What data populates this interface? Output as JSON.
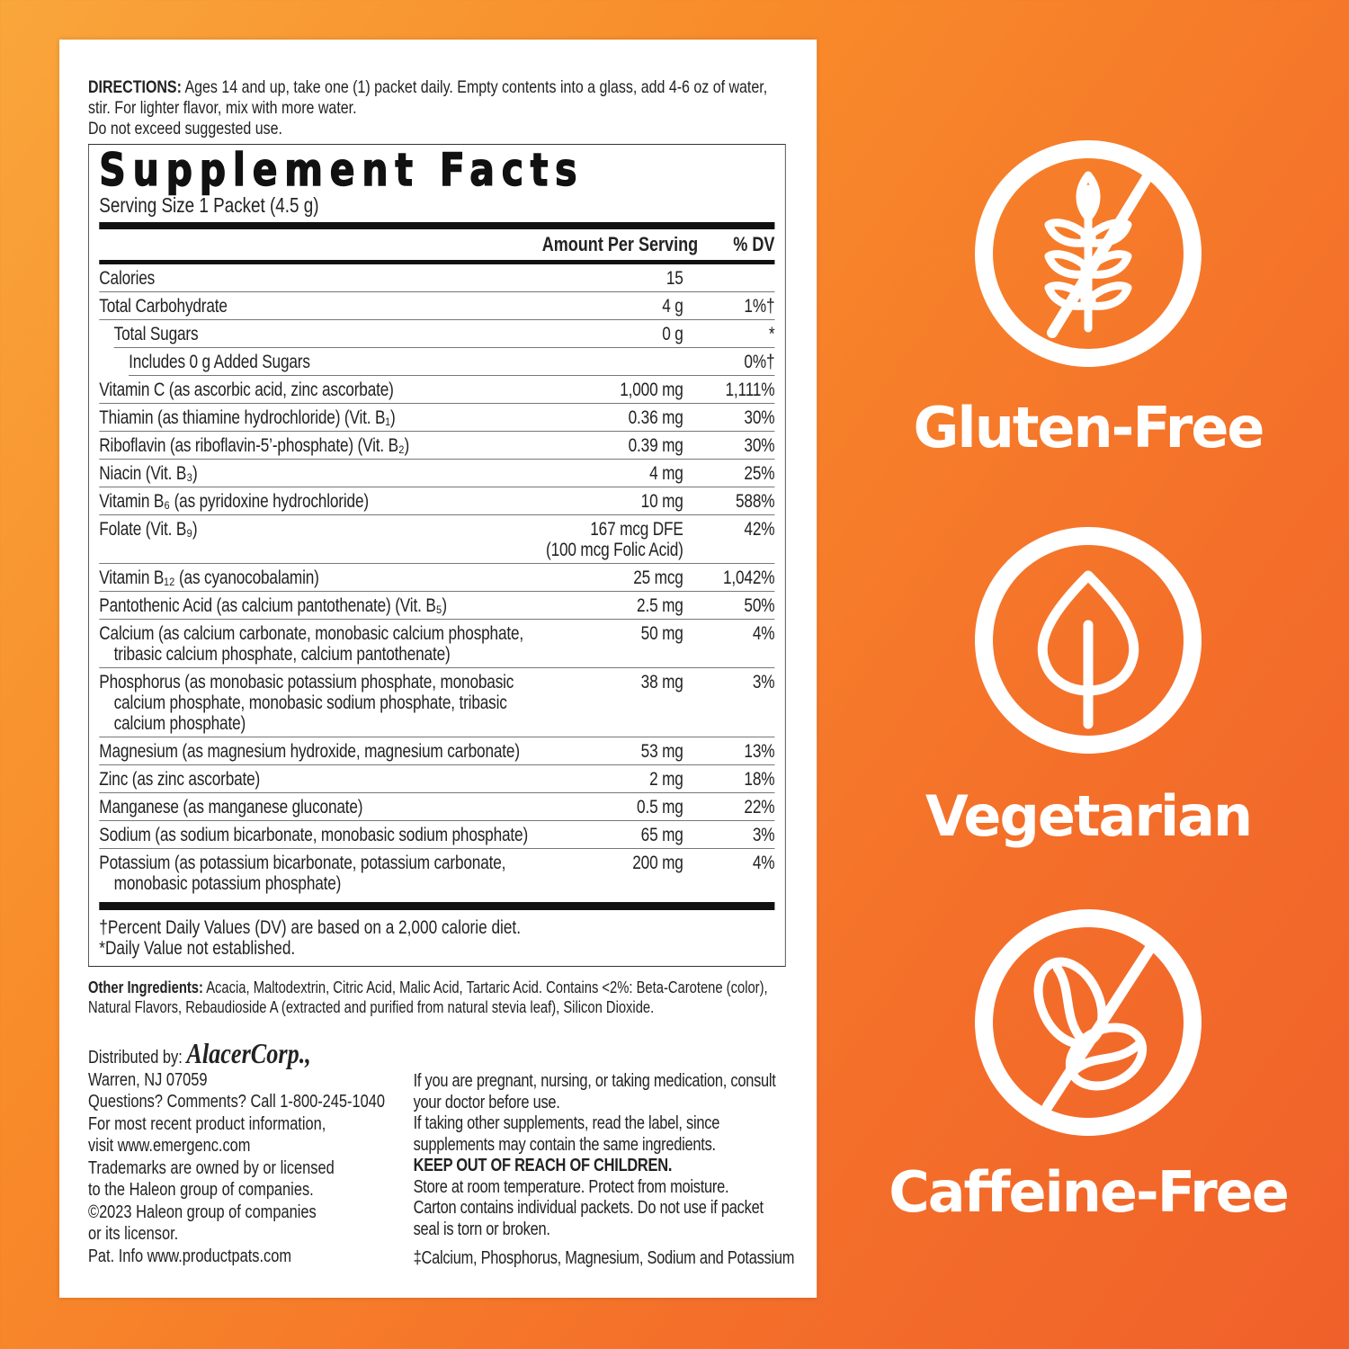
{
  "directions": {
    "label": "DIRECTIONS:",
    "text": " Ages 14 and up, take one (1) packet daily. Empty contents into a glass, add 4-6 oz of water, stir. For lighter flavor, mix with more water.",
    "line3": "Do not exceed suggested use."
  },
  "facts": {
    "title": "Supplement Facts",
    "serving": "Serving Size 1 Packet (4.5 g)",
    "header_amount": "Amount Per Serving",
    "header_dv": "% DV",
    "rows": [
      {
        "name": "Calories",
        "amount": "15",
        "dv": ""
      },
      {
        "name": "Total Carbohydrate",
        "amount": "4 g",
        "dv": "1%†"
      },
      {
        "name": "Total Sugars",
        "amount": "0 g",
        "dv": "*"
      },
      {
        "name": "Includes 0 g Added Sugars",
        "amount": "",
        "dv": "0%†"
      },
      {
        "name": "Vitamin C (as ascorbic acid, zinc ascorbate)",
        "amount": "1,000 mg",
        "dv": "1,111%"
      },
      {
        "name": "Thiamin (as thiamine hydrochloride) (Vit. B₁)",
        "amount": "0.36 mg",
        "dv": "30%"
      },
      {
        "name": "Riboflavin (as riboflavin-5’-phosphate) (Vit. B₂)",
        "amount": "0.39 mg",
        "dv": "30%"
      },
      {
        "name": "Niacin (Vit. B₃)",
        "amount": "4 mg",
        "dv": "25%"
      },
      {
        "name": "Vitamin B₆ (as pyridoxine hydrochloride)",
        "amount": "10 mg",
        "dv": "588%"
      },
      {
        "name": "Folate (Vit. B₉)",
        "amount": "167 mcg DFE",
        "amount2": "(100 mcg Folic Acid)",
        "dv": "42%"
      },
      {
        "name": "Vitamin B₁₂ (as cyanocobalamin)",
        "amount": "25 mcg",
        "dv": "1,042%"
      },
      {
        "name": "Pantothenic Acid (as calcium pantothenate) (Vit. B₅)",
        "amount": "2.5 mg",
        "dv": "50%"
      },
      {
        "name": "Calcium (as calcium carbonate, monobasic calcium phosphate,",
        "name2": "tribasic calcium phosphate, calcium pantothenate)",
        "amount": "50 mg",
        "dv": "4%"
      },
      {
        "name": "Phosphorus (as monobasic potassium phosphate, monobasic",
        "name2": "calcium phosphate, monobasic sodium phosphate, tribasic",
        "name3": "calcium phosphate)",
        "amount": "38 mg",
        "dv": "3%"
      },
      {
        "name": "Magnesium (as magnesium hydroxide, magnesium carbonate)",
        "amount": "53 mg",
        "dv": "13%"
      },
      {
        "name": "Zinc (as zinc ascorbate)",
        "amount": "2 mg",
        "dv": "18%"
      },
      {
        "name": "Manganese (as manganese gluconate)",
        "amount": "0.5 mg",
        "dv": "22%"
      },
      {
        "name": "Sodium (as sodium bicarbonate, monobasic sodium phosphate)",
        "amount": "65 mg",
        "dv": "3%"
      },
      {
        "name": "Potassium (as potassium bicarbonate, potassium carbonate,",
        "name2": "monobasic potassium phosphate)",
        "amount": "200 mg",
        "dv": "4%"
      }
    ],
    "footnote1": "†Percent Daily Values (DV) are based on a 2,000 calorie diet.",
    "footnote2": "*Daily Value not established."
  },
  "other_ingredients": {
    "label": "Other Ingredients:",
    "text": " Acacia, Maltodextrin, Citric Acid, Malic Acid, Tartaric Acid. Contains <2%: Beta-Carotene (color), Natural Flavors, Rebaudioside A (extracted and purified from natural stevia leaf), Silicon Dioxide."
  },
  "distributor": {
    "label": "Distributed by: ",
    "logo": "AlacerCorp.,",
    "lines": [
      "Warren, NJ 07059",
      "Questions? Comments? Call 1-800-245-1040",
      "For most recent product information,",
      "visit www.emergenc.com",
      "Trademarks are owned by or licensed",
      "to the Haleon group of companies.",
      "©2023 Haleon group of companies",
      "or its licensor.",
      "Pat. Info www.productpats.com"
    ]
  },
  "warnings": {
    "lines": [
      "If you are pregnant, nursing, or taking medication, consult",
      "your doctor before use.",
      "If taking other supplements, read the label, since",
      "supplements may contain the same ingredients."
    ],
    "bold": "KEEP OUT OF REACH OF CHILDREN.",
    "lines2": [
      "Store at room temperature. Protect from moisture.",
      "Carton contains individual packets. Do not use if packet",
      "seal is torn or broken."
    ],
    "footnote": "‡Calcium, Phosphorus, Magnesium, Sodium and Potassium"
  },
  "claims": [
    {
      "label": "Gluten-Free",
      "icon": "no-wheat-icon"
    },
    {
      "label": "Vegetarian",
      "icon": "leaf-icon"
    },
    {
      "label": "Caffeine-Free",
      "icon": "no-coffee-bean-icon"
    }
  ],
  "colors": {
    "background_light": "#f9a63b",
    "background_dark": "#f0602a",
    "card": "#ffffff",
    "icon": "#ffffff"
  }
}
